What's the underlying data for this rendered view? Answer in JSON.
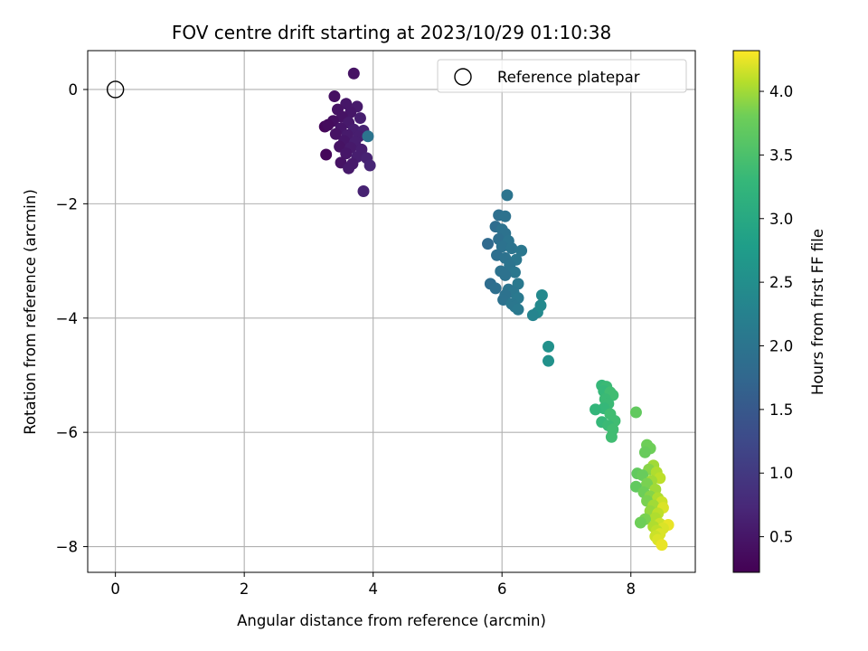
{
  "chart_data": {
    "type": "scatter",
    "title": "FOV centre drift starting at 2023/10/29 01:10:38",
    "xlabel": "Angular distance from reference (arcmin)",
    "ylabel": "Rotation from reference (arcmin)",
    "xlim": [
      -0.43,
      9.0
    ],
    "ylim": [
      -8.45,
      0.68
    ],
    "xticks": [
      0,
      2,
      4,
      6,
      8
    ],
    "yticks": [
      0,
      -2,
      -4,
      -6,
      -8
    ],
    "xtick_labels": [
      "0",
      "2",
      "4",
      "6",
      "8"
    ],
    "ytick_labels": [
      "0",
      "−2",
      "−4",
      "−6",
      "−8"
    ],
    "grid": true,
    "legend": {
      "location": "top-right",
      "entries": [
        "Reference platepar"
      ]
    },
    "reference_point": {
      "name": "Reference platepar",
      "x": 0,
      "y": 0,
      "marker": "open-circle"
    },
    "colorbar": {
      "label": "Hours from first FF file",
      "colormap": "viridis",
      "range": [
        0.22,
        4.32
      ],
      "ticks": [
        0.5,
        1.0,
        1.5,
        2.0,
        2.5,
        3.0,
        3.5,
        4.0
      ],
      "tick_labels": [
        "0.5",
        "1.0",
        "1.5",
        "2.0",
        "2.5",
        "3.0",
        "3.5",
        "4.0"
      ]
    },
    "points": [
      {
        "x": 3.7,
        "y": 0.28,
        "h": 0.45
      },
      {
        "x": 3.4,
        "y": -0.12,
        "h": 0.4
      },
      {
        "x": 3.58,
        "y": -0.25,
        "h": 0.5
      },
      {
        "x": 3.75,
        "y": -0.3,
        "h": 0.55
      },
      {
        "x": 3.45,
        "y": -0.35,
        "h": 0.45
      },
      {
        "x": 3.65,
        "y": -0.4,
        "h": 0.5
      },
      {
        "x": 3.52,
        "y": -0.48,
        "h": 0.45
      },
      {
        "x": 3.8,
        "y": -0.5,
        "h": 0.6
      },
      {
        "x": 3.38,
        "y": -0.55,
        "h": 0.4
      },
      {
        "x": 3.62,
        "y": -0.58,
        "h": 0.55
      },
      {
        "x": 3.25,
        "y": -0.65,
        "h": 0.3
      },
      {
        "x": 3.5,
        "y": -0.68,
        "h": 0.5
      },
      {
        "x": 3.7,
        "y": -0.7,
        "h": 0.6
      },
      {
        "x": 3.85,
        "y": -0.72,
        "h": 0.65
      },
      {
        "x": 3.42,
        "y": -0.78,
        "h": 0.45
      },
      {
        "x": 3.6,
        "y": -0.8,
        "h": 0.55
      },
      {
        "x": 3.78,
        "y": -0.82,
        "h": 0.6
      },
      {
        "x": 3.92,
        "y": -0.82,
        "h": 2.0
      },
      {
        "x": 3.55,
        "y": -0.9,
        "h": 0.5
      },
      {
        "x": 3.72,
        "y": -0.92,
        "h": 0.6
      },
      {
        "x": 3.48,
        "y": -1.0,
        "h": 0.45
      },
      {
        "x": 3.65,
        "y": -1.02,
        "h": 0.55
      },
      {
        "x": 3.82,
        "y": -1.05,
        "h": 0.6
      },
      {
        "x": 3.58,
        "y": -1.12,
        "h": 0.5
      },
      {
        "x": 3.27,
        "y": -1.14,
        "h": 0.3
      },
      {
        "x": 3.75,
        "y": -1.18,
        "h": 0.6
      },
      {
        "x": 3.9,
        "y": -1.2,
        "h": 0.65
      },
      {
        "x": 3.5,
        "y": -1.28,
        "h": 0.45
      },
      {
        "x": 3.68,
        "y": -1.3,
        "h": 0.55
      },
      {
        "x": 3.95,
        "y": -1.33,
        "h": 0.7
      },
      {
        "x": 3.62,
        "y": -1.38,
        "h": 0.55
      },
      {
        "x": 3.85,
        "y": -1.78,
        "h": 0.65
      },
      {
        "x": 3.3,
        "y": -0.62,
        "h": 0.35
      },
      {
        "x": 6.08,
        "y": -1.85,
        "h": 2.0
      },
      {
        "x": 5.95,
        "y": -2.2,
        "h": 1.9
      },
      {
        "x": 6.05,
        "y": -2.22,
        "h": 1.95
      },
      {
        "x": 5.9,
        "y": -2.4,
        "h": 1.85
      },
      {
        "x": 6.0,
        "y": -2.45,
        "h": 1.95
      },
      {
        "x": 6.05,
        "y": -2.52,
        "h": 1.95
      },
      {
        "x": 5.95,
        "y": -2.62,
        "h": 1.9
      },
      {
        "x": 6.1,
        "y": -2.65,
        "h": 2.0
      },
      {
        "x": 5.78,
        "y": -2.7,
        "h": 1.8
      },
      {
        "x": 6.0,
        "y": -2.75,
        "h": 1.95
      },
      {
        "x": 6.15,
        "y": -2.78,
        "h": 2.0
      },
      {
        "x": 6.3,
        "y": -2.82,
        "h": 2.05
      },
      {
        "x": 5.92,
        "y": -2.9,
        "h": 1.9
      },
      {
        "x": 6.05,
        "y": -2.95,
        "h": 1.95
      },
      {
        "x": 6.22,
        "y": -2.98,
        "h": 2.05
      },
      {
        "x": 6.12,
        "y": -3.08,
        "h": 2.0
      },
      {
        "x": 5.98,
        "y": -3.18,
        "h": 1.95
      },
      {
        "x": 6.2,
        "y": -3.2,
        "h": 2.05
      },
      {
        "x": 6.05,
        "y": -3.25,
        "h": 1.95
      },
      {
        "x": 5.82,
        "y": -3.4,
        "h": 1.85
      },
      {
        "x": 6.25,
        "y": -3.4,
        "h": 2.1
      },
      {
        "x": 5.9,
        "y": -3.48,
        "h": 1.9
      },
      {
        "x": 6.1,
        "y": -3.5,
        "h": 2.0
      },
      {
        "x": 6.18,
        "y": -3.55,
        "h": 2.05
      },
      {
        "x": 6.05,
        "y": -3.6,
        "h": 1.95
      },
      {
        "x": 6.25,
        "y": -3.65,
        "h": 2.1
      },
      {
        "x": 6.62,
        "y": -3.6,
        "h": 2.4
      },
      {
        "x": 6.02,
        "y": -3.68,
        "h": 1.95
      },
      {
        "x": 6.15,
        "y": -3.75,
        "h": 2.05
      },
      {
        "x": 6.6,
        "y": -3.78,
        "h": 2.4
      },
      {
        "x": 6.2,
        "y": -3.8,
        "h": 2.05
      },
      {
        "x": 6.25,
        "y": -3.85,
        "h": 2.1
      },
      {
        "x": 6.55,
        "y": -3.9,
        "h": 2.4
      },
      {
        "x": 6.48,
        "y": -3.95,
        "h": 2.3
      },
      {
        "x": 6.72,
        "y": -4.5,
        "h": 2.55
      },
      {
        "x": 6.72,
        "y": -4.75,
        "h": 2.55
      },
      {
        "x": 7.55,
        "y": -5.18,
        "h": 3.3
      },
      {
        "x": 7.62,
        "y": -5.2,
        "h": 3.35
      },
      {
        "x": 7.58,
        "y": -5.28,
        "h": 3.3
      },
      {
        "x": 7.68,
        "y": -5.3,
        "h": 3.4
      },
      {
        "x": 7.72,
        "y": -5.35,
        "h": 3.4
      },
      {
        "x": 7.6,
        "y": -5.42,
        "h": 3.35
      },
      {
        "x": 7.65,
        "y": -5.5,
        "h": 3.35
      },
      {
        "x": 7.58,
        "y": -5.58,
        "h": 3.3
      },
      {
        "x": 7.45,
        "y": -5.6,
        "h": 3.25
      },
      {
        "x": 7.68,
        "y": -5.68,
        "h": 3.4
      },
      {
        "x": 8.08,
        "y": -5.65,
        "h": 3.7
      },
      {
        "x": 7.55,
        "y": -5.82,
        "h": 3.3
      },
      {
        "x": 7.75,
        "y": -5.8,
        "h": 3.4
      },
      {
        "x": 7.65,
        "y": -5.88,
        "h": 3.35
      },
      {
        "x": 7.72,
        "y": -5.95,
        "h": 3.4
      },
      {
        "x": 7.7,
        "y": -6.08,
        "h": 3.4
      },
      {
        "x": 8.25,
        "y": -6.22,
        "h": 3.8
      },
      {
        "x": 8.3,
        "y": -6.28,
        "h": 3.8
      },
      {
        "x": 8.22,
        "y": -6.35,
        "h": 3.75
      },
      {
        "x": 8.35,
        "y": -6.58,
        "h": 4.0
      },
      {
        "x": 8.28,
        "y": -6.65,
        "h": 3.9
      },
      {
        "x": 8.4,
        "y": -6.7,
        "h": 4.05
      },
      {
        "x": 8.1,
        "y": -6.72,
        "h": 3.7
      },
      {
        "x": 8.18,
        "y": -6.75,
        "h": 3.75
      },
      {
        "x": 8.45,
        "y": -6.8,
        "h": 4.1
      },
      {
        "x": 8.32,
        "y": -6.85,
        "h": 4.0
      },
      {
        "x": 8.25,
        "y": -6.9,
        "h": 3.85
      },
      {
        "x": 8.08,
        "y": -6.95,
        "h": 3.7
      },
      {
        "x": 8.38,
        "y": -7.0,
        "h": 4.0
      },
      {
        "x": 8.2,
        "y": -7.05,
        "h": 3.8
      },
      {
        "x": 8.3,
        "y": -7.12,
        "h": 3.9
      },
      {
        "x": 8.42,
        "y": -7.15,
        "h": 4.05
      },
      {
        "x": 8.25,
        "y": -7.2,
        "h": 3.85
      },
      {
        "x": 8.48,
        "y": -7.22,
        "h": 4.15
      },
      {
        "x": 8.35,
        "y": -7.28,
        "h": 4.0
      },
      {
        "x": 8.5,
        "y": -7.32,
        "h": 4.2
      },
      {
        "x": 8.3,
        "y": -7.38,
        "h": 3.95
      },
      {
        "x": 8.42,
        "y": -7.42,
        "h": 4.1
      },
      {
        "x": 8.38,
        "y": -7.5,
        "h": 4.05
      },
      {
        "x": 8.22,
        "y": -7.52,
        "h": 3.85
      },
      {
        "x": 8.15,
        "y": -7.58,
        "h": 3.8
      },
      {
        "x": 8.45,
        "y": -7.6,
        "h": 4.15
      },
      {
        "x": 8.58,
        "y": -7.62,
        "h": 4.25
      },
      {
        "x": 8.35,
        "y": -7.65,
        "h": 4.05
      },
      {
        "x": 8.5,
        "y": -7.68,
        "h": 4.2
      },
      {
        "x": 8.4,
        "y": -7.72,
        "h": 4.1
      },
      {
        "x": 8.45,
        "y": -7.78,
        "h": 4.2
      },
      {
        "x": 8.38,
        "y": -7.82,
        "h": 4.15
      },
      {
        "x": 8.42,
        "y": -7.88,
        "h": 4.2
      },
      {
        "x": 8.48,
        "y": -7.97,
        "h": 4.25
      }
    ]
  }
}
